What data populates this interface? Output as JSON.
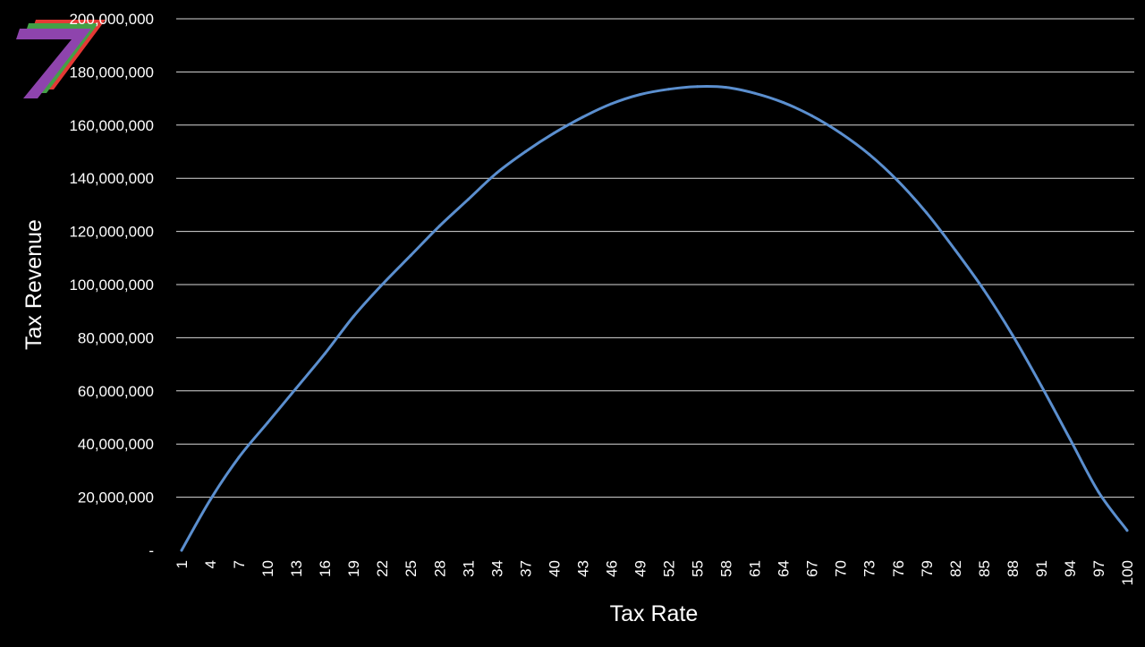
{
  "chart_data": {
    "type": "line",
    "title": "",
    "xlabel": "Tax Rate",
    "ylabel": "Tax Revenue",
    "ylim": [
      0,
      200000000
    ],
    "grid": true,
    "legend": "none",
    "y_ticks": [
      0,
      20000000,
      40000000,
      60000000,
      80000000,
      100000000,
      120000000,
      140000000,
      160000000,
      180000000,
      200000000
    ],
    "y_tick_labels": [
      "-",
      "20,000,000",
      "40,000,000",
      "60,000,000",
      "80,000,000",
      "100,000,000",
      "120,000,000",
      "140,000,000",
      "160,000,000",
      "180,000,000",
      "200,000,000"
    ],
    "x_tick_labels": [
      "1",
      "4",
      "7",
      "10",
      "13",
      "16",
      "19",
      "22",
      "25",
      "28",
      "31",
      "34",
      "37",
      "40",
      "43",
      "46",
      "49",
      "52",
      "55",
      "58",
      "61",
      "64",
      "67",
      "70",
      "73",
      "76",
      "79",
      "82",
      "85",
      "88",
      "91",
      "94",
      "97",
      "100"
    ],
    "x": [
      1,
      4,
      7,
      10,
      13,
      16,
      19,
      22,
      25,
      28,
      31,
      34,
      37,
      40,
      43,
      46,
      49,
      52,
      55,
      58,
      61,
      64,
      67,
      70,
      73,
      76,
      79,
      82,
      85,
      88,
      91,
      94,
      97,
      100
    ],
    "series": [
      {
        "color": "#5b8fcf",
        "values": [
          0,
          19000000,
          35000000,
          48000000,
          61000000,
          74000000,
          88000000,
          100000000,
          111000000,
          122000000,
          132000000,
          142000000,
          150000000,
          157000000,
          163000000,
          168000000,
          171500000,
          173500000,
          174500000,
          174200000,
          172000000,
          168500000,
          163500000,
          157000000,
          149000000,
          139000000,
          127000000,
          113000000,
          98000000,
          81000000,
          62000000,
          42000000,
          22000000,
          7500000
        ]
      }
    ]
  },
  "logo": {
    "colors": [
      "#e53935",
      "#43a047",
      "#8e44ad"
    ]
  }
}
